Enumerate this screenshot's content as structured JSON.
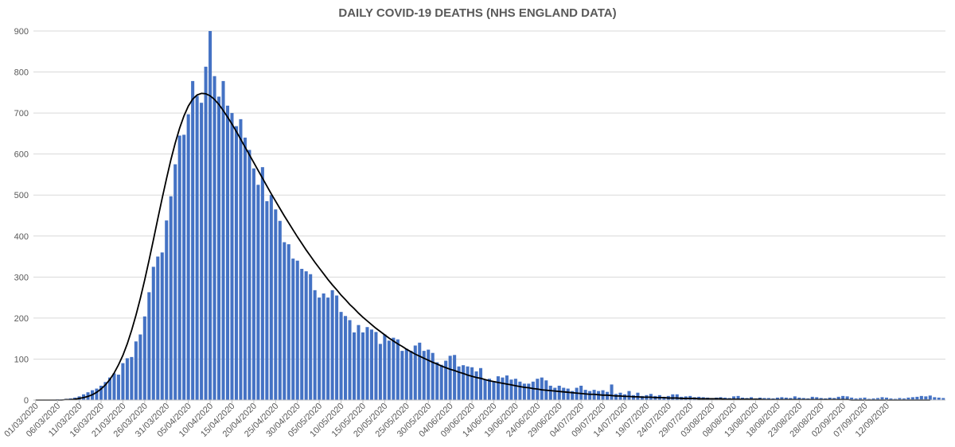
{
  "chart_data": {
    "type": "bar",
    "title": "DAILY COVID-19 DEATHS (NHS ENGLAND DATA)",
    "xlabel": "",
    "ylabel": "",
    "ylim": [
      0,
      900
    ],
    "yticks": [
      0,
      100,
      200,
      300,
      400,
      500,
      600,
      700,
      800,
      900
    ],
    "grid": "horizontal",
    "legend": "none",
    "x_start": "01/03/2020",
    "x_end": "13/09/2020",
    "xtick_labels": [
      "01/03/2020",
      "06/03/2020",
      "11/03/2020",
      "16/03/2020",
      "21/03/2020",
      "26/03/2020",
      "31/03/2020",
      "05/04/2020",
      "10/04/2020",
      "15/04/2020",
      "20/04/2020",
      "25/04/2020",
      "30/04/2020",
      "05/05/2020",
      "10/05/2020",
      "15/05/2020",
      "20/05/2020",
      "25/05/2020",
      "30/05/2020",
      "04/06/2020",
      "09/06/2020",
      "14/06/2020",
      "19/06/2020",
      "24/06/2020",
      "29/06/2020",
      "04/07/2020",
      "09/07/2020",
      "14/07/2020",
      "19/07/2020",
      "24/07/2020",
      "29/07/2020",
      "03/08/2020",
      "08/08/2020",
      "13/08/2020",
      "18/08/2020",
      "23/08/2020",
      "28/08/2020",
      "02/09/2020",
      "07/09/2020",
      "12/09/2020"
    ],
    "series": [
      {
        "type": "bar",
        "color": "#4472C4",
        "values": [
          0,
          0,
          1,
          0,
          1,
          2,
          2,
          3,
          4,
          6,
          9,
          14,
          19,
          24,
          28,
          35,
          44,
          55,
          65,
          62,
          90,
          102,
          105,
          143,
          160,
          204,
          263,
          325,
          350,
          360,
          438,
          497,
          575,
          645,
          647,
          697,
          778,
          742,
          725,
          813,
          900,
          790,
          740,
          778,
          718,
          700,
          668,
          685,
          640,
          610,
          565,
          525,
          568,
          485,
          500,
          465,
          437,
          385,
          380,
          345,
          340,
          320,
          314,
          307,
          268,
          250,
          260,
          250,
          268,
          255,
          215,
          205,
          195,
          165,
          183,
          165,
          178,
          172,
          166,
          137,
          160,
          145,
          152,
          148,
          120,
          125,
          120,
          133,
          140,
          120,
          123,
          115,
          92,
          86,
          96,
          108,
          110,
          82,
          85,
          82,
          80,
          70,
          78,
          50,
          52,
          46,
          58,
          55,
          60,
          50,
          52,
          45,
          40,
          40,
          45,
          52,
          55,
          48,
          35,
          30,
          35,
          30,
          28,
          22,
          30,
          35,
          25,
          22,
          25,
          22,
          24,
          20,
          38,
          15,
          18,
          14,
          22,
          12,
          18,
          10,
          12,
          15,
          10,
          12,
          8,
          10,
          14,
          14,
          8,
          9,
          10,
          7,
          8,
          7,
          6,
          5,
          6,
          7,
          6,
          5,
          9,
          10,
          6,
          5,
          7,
          4,
          6,
          5,
          5,
          4,
          6,
          7,
          6,
          5,
          9,
          6,
          5,
          4,
          8,
          7,
          5,
          4,
          6,
          5,
          8,
          10,
          9,
          6,
          4,
          5,
          6,
          3,
          4,
          5,
          7,
          6,
          4,
          3,
          5,
          4,
          6,
          7,
          8,
          10,
          9,
          11,
          7,
          6,
          5
        ]
      },
      {
        "type": "line",
        "color": "#000000",
        "values": [
          0,
          0,
          0,
          0,
          0,
          0,
          0,
          1,
          1,
          2,
          4,
          6,
          9,
          13,
          19,
          27,
          37,
          50,
          66,
          86,
          109,
          137,
          170,
          207,
          248,
          293,
          341,
          391,
          442,
          492,
          540,
          586,
          627,
          663,
          693,
          717,
          734,
          744,
          748,
          747,
          742,
          733,
          721,
          706,
          690,
          673,
          655,
          636,
          617,
          598,
          579,
          560,
          541,
          522,
          503,
          485,
          467,
          449,
          432,
          415,
          398,
          382,
          366,
          351,
          336,
          322,
          308,
          294,
          281,
          269,
          256,
          245,
          233,
          223,
          212,
          202,
          193,
          184,
          175,
          167,
          159,
          151,
          144,
          137,
          131,
          124,
          118,
          112,
          107,
          102,
          97,
          92,
          88,
          83,
          79,
          75,
          72,
          68,
          65,
          61,
          58,
          55,
          53,
          50,
          47,
          45,
          43,
          41,
          39,
          37,
          35,
          33,
          31,
          30,
          28,
          27,
          25,
          24,
          23,
          22,
          21,
          20,
          19,
          18,
          17,
          16,
          15,
          14,
          14,
          13,
          12,
          12,
          11,
          10,
          10,
          9,
          9,
          8,
          8,
          7,
          7,
          7,
          6,
          6,
          6,
          5,
          5,
          5,
          4,
          4,
          4,
          4,
          3,
          3,
          3,
          3,
          3,
          3,
          2,
          2,
          2,
          2,
          2,
          2,
          2,
          2,
          2,
          1,
          1,
          1,
          1,
          1,
          1,
          1,
          1,
          1,
          1,
          1,
          1,
          1,
          1,
          1,
          1,
          1,
          1,
          1,
          1,
          0,
          0,
          0,
          0,
          0,
          0,
          0,
          0,
          0,
          0,
          0,
          0,
          0,
          0,
          0,
          0,
          0,
          0,
          0
        ]
      }
    ]
  }
}
